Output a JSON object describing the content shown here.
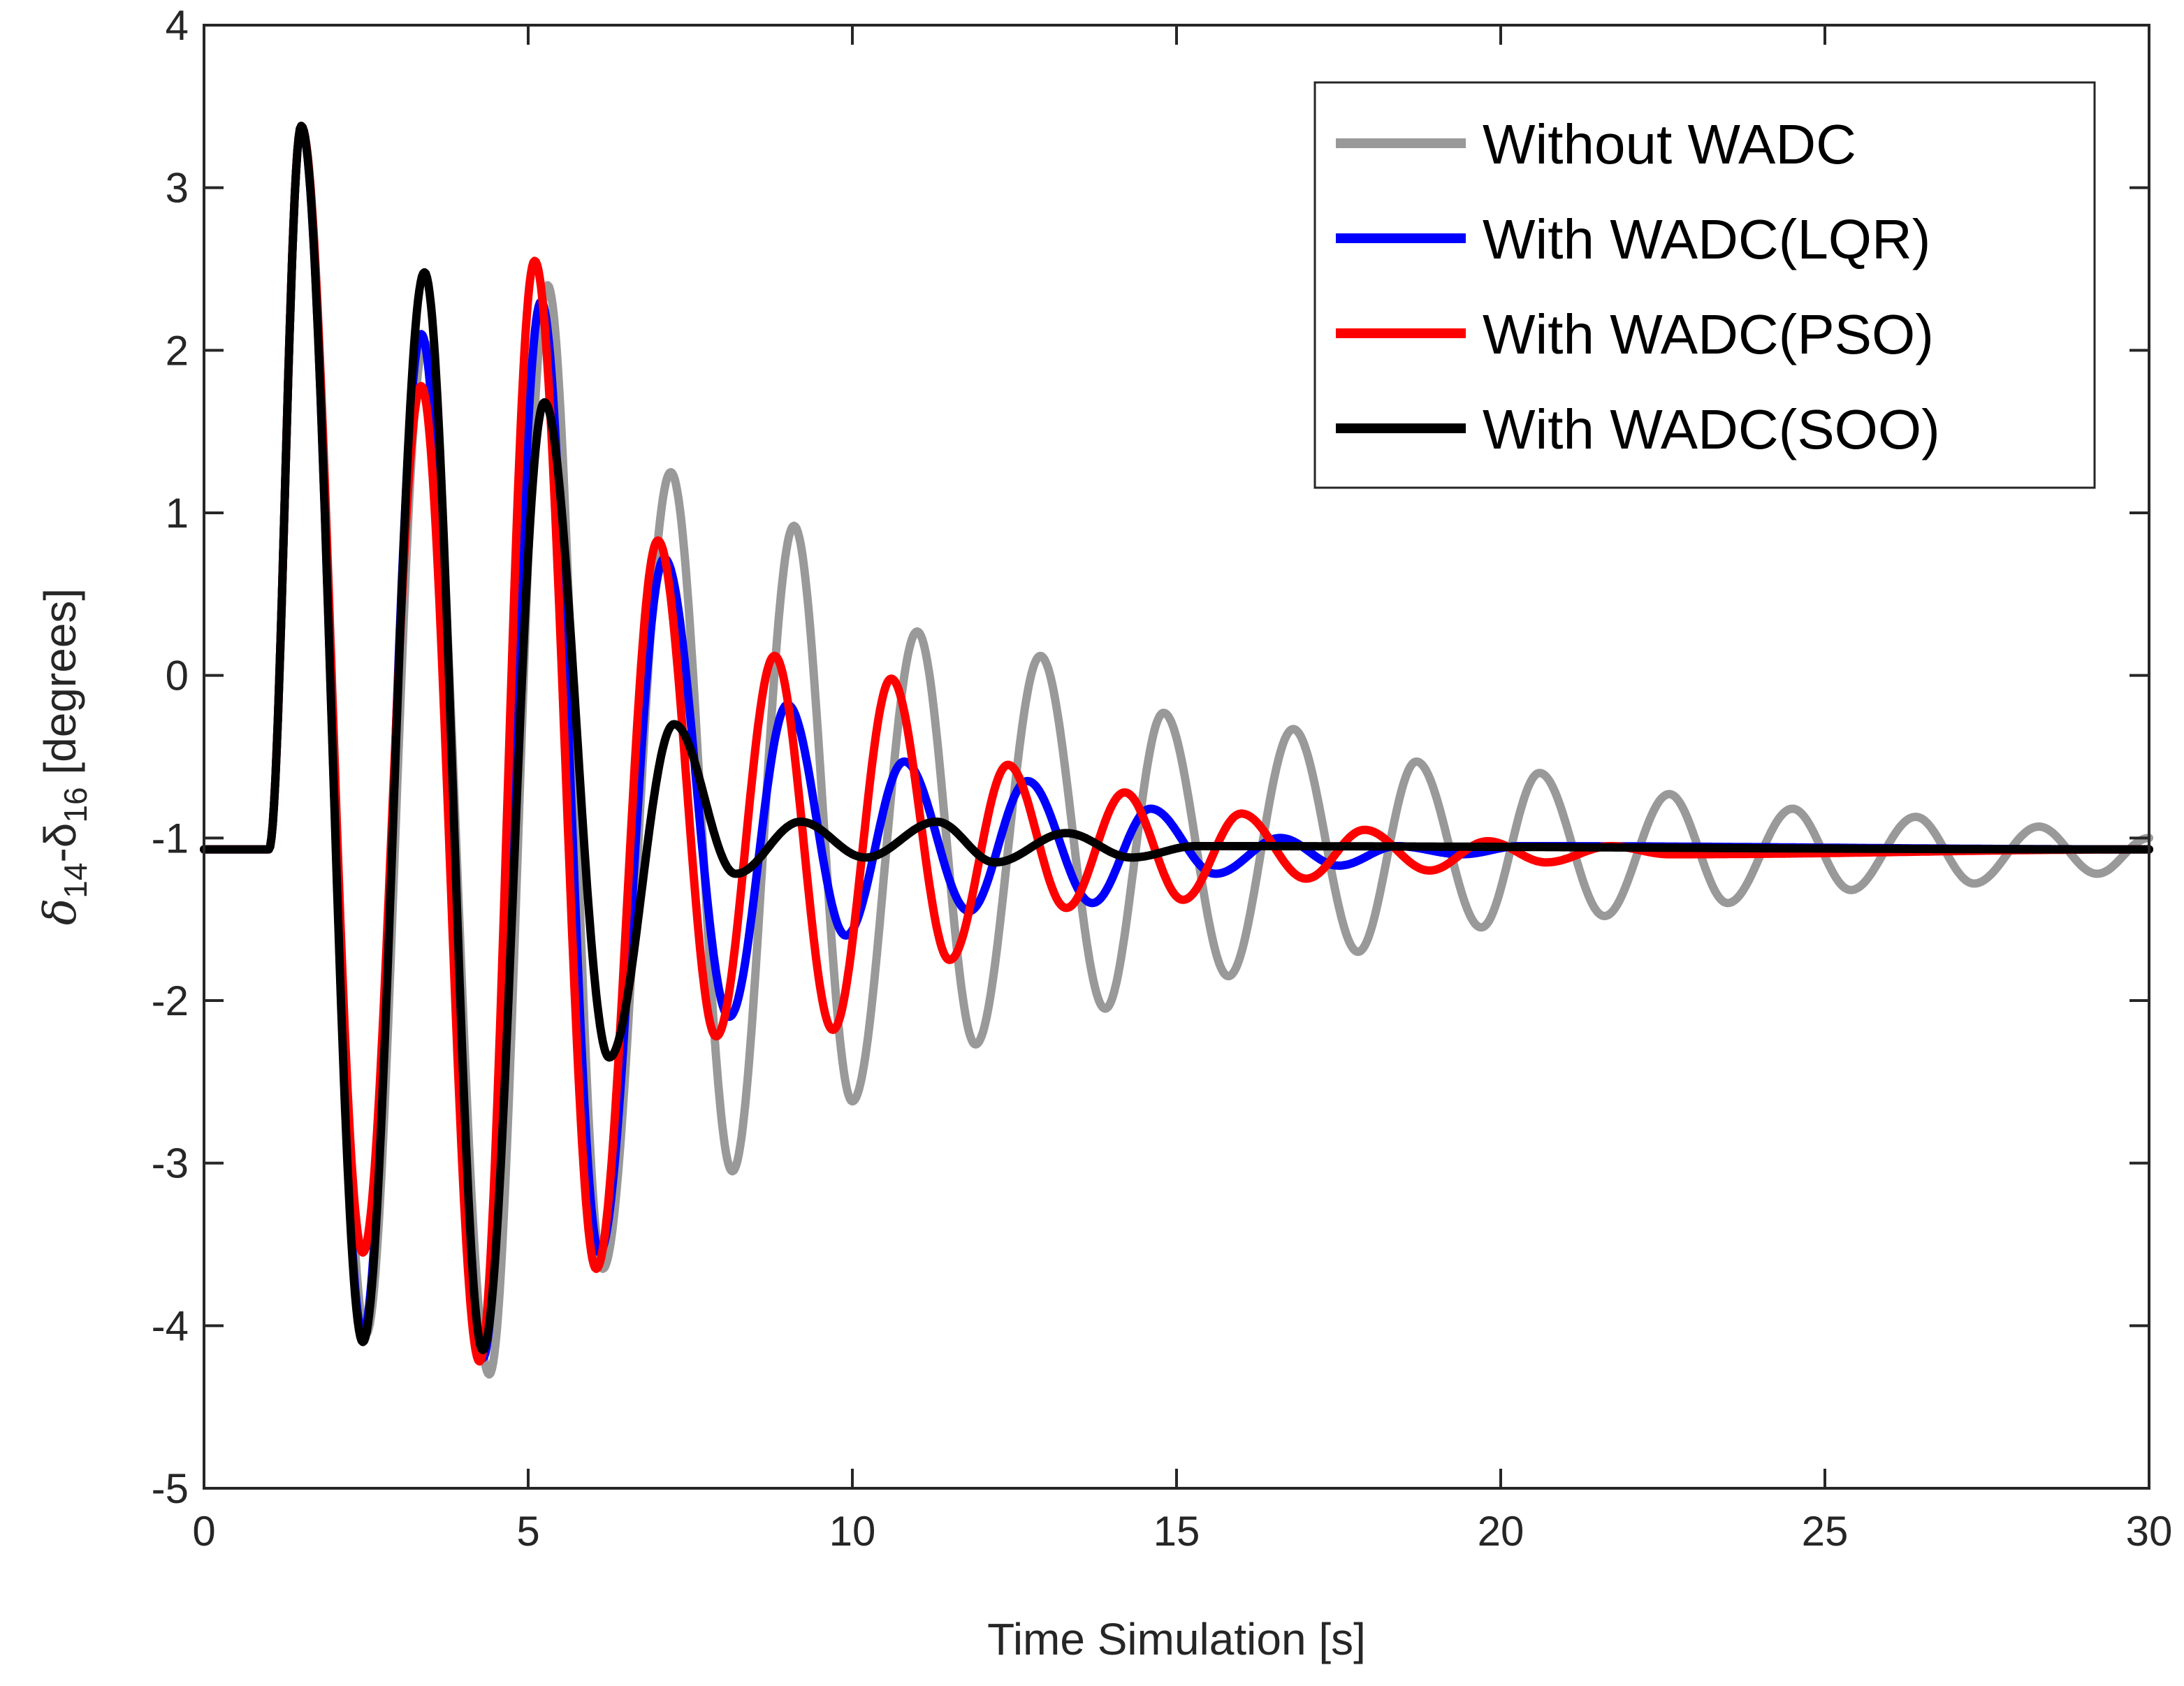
{
  "chart_data": {
    "type": "line",
    "title": "",
    "xlabel": "Time Simulation [s]",
    "ylabel": {
      "prefix": "δ",
      "sub1": "14",
      "mid": "-δ",
      "sub2": "16",
      "suffix": " [degrees]"
    },
    "xlim": [
      0,
      30
    ],
    "ylim": [
      -5,
      4
    ],
    "xticks": [
      0,
      5,
      10,
      15,
      20,
      25,
      30
    ],
    "yticks": [
      -5,
      -4,
      -3,
      -2,
      -1,
      0,
      1,
      2,
      3,
      4
    ],
    "xtick_labels": [
      "0",
      "5",
      "10",
      "15",
      "20",
      "25",
      "30"
    ],
    "ytick_labels": [
      "-5",
      "-4",
      "-3",
      "-2",
      "-1",
      "0",
      "1",
      "2",
      "3",
      "4"
    ],
    "grid": false,
    "legend_position": "top-right",
    "baseline": -1.07,
    "disturbance_start": 1.0,
    "series": [
      {
        "name": "Without WADC",
        "color": "#999999",
        "extrema": [
          [
            1.0,
            -1.07
          ],
          [
            1.5,
            3.38
          ],
          [
            2.5,
            -4.05
          ],
          [
            3.4,
            2.05
          ],
          [
            4.4,
            -4.3
          ],
          [
            5.3,
            2.4
          ],
          [
            6.15,
            -3.65
          ],
          [
            7.2,
            1.25
          ],
          [
            8.15,
            -3.05
          ],
          [
            9.1,
            0.92
          ],
          [
            10.0,
            -2.62
          ],
          [
            11.0,
            0.27
          ],
          [
            11.9,
            -2.27
          ],
          [
            12.9,
            0.12
          ],
          [
            13.9,
            -2.05
          ],
          [
            14.8,
            -0.23
          ],
          [
            15.8,
            -1.85
          ],
          [
            16.8,
            -0.33
          ],
          [
            17.8,
            -1.7
          ],
          [
            18.7,
            -0.53
          ],
          [
            19.7,
            -1.55
          ],
          [
            20.6,
            -0.6
          ],
          [
            21.6,
            -1.48
          ],
          [
            22.6,
            -0.73
          ],
          [
            23.5,
            -1.4
          ],
          [
            24.5,
            -0.82
          ],
          [
            25.4,
            -1.32
          ],
          [
            26.4,
            -0.87
          ],
          [
            27.3,
            -1.28
          ],
          [
            28.3,
            -0.93
          ],
          [
            29.2,
            -1.22
          ],
          [
            30.0,
            -1.0
          ]
        ]
      },
      {
        "name": "With WADC(LQR)",
        "color": "#0000ff",
        "extrema": [
          [
            1.0,
            -1.07
          ],
          [
            1.5,
            3.38
          ],
          [
            2.45,
            -4.05
          ],
          [
            3.35,
            2.1
          ],
          [
            4.3,
            -4.2
          ],
          [
            5.2,
            2.3
          ],
          [
            6.1,
            -3.55
          ],
          [
            7.1,
            0.72
          ],
          [
            8.1,
            -2.1
          ],
          [
            9.0,
            -0.18
          ],
          [
            9.9,
            -1.6
          ],
          [
            10.8,
            -0.53
          ],
          [
            11.8,
            -1.45
          ],
          [
            12.7,
            -0.65
          ],
          [
            13.7,
            -1.4
          ],
          [
            14.6,
            -0.82
          ],
          [
            15.6,
            -1.22
          ],
          [
            16.6,
            -1.0
          ],
          [
            17.5,
            -1.17
          ],
          [
            18.4,
            -1.05
          ],
          [
            19.4,
            -1.1
          ],
          [
            20.3,
            -1.05
          ],
          [
            30.0,
            -1.07
          ]
        ]
      },
      {
        "name": "With WADC(PSO)",
        "color": "#ff0000",
        "extrema": [
          [
            1.0,
            -1.07
          ],
          [
            1.5,
            3.38
          ],
          [
            2.45,
            -3.55
          ],
          [
            3.35,
            1.78
          ],
          [
            4.25,
            -4.22
          ],
          [
            5.1,
            2.55
          ],
          [
            6.05,
            -3.65
          ],
          [
            7.0,
            0.83
          ],
          [
            7.9,
            -2.22
          ],
          [
            8.8,
            0.12
          ],
          [
            9.7,
            -2.18
          ],
          [
            10.6,
            -0.02
          ],
          [
            11.5,
            -1.75
          ],
          [
            12.4,
            -0.55
          ],
          [
            13.3,
            -1.43
          ],
          [
            14.2,
            -0.72
          ],
          [
            15.1,
            -1.38
          ],
          [
            16.0,
            -0.85
          ],
          [
            17.0,
            -1.25
          ],
          [
            17.9,
            -0.95
          ],
          [
            18.9,
            -1.2
          ],
          [
            19.8,
            -1.02
          ],
          [
            20.7,
            -1.15
          ],
          [
            21.7,
            -1.05
          ],
          [
            22.6,
            -1.1
          ],
          [
            30.0,
            -1.07
          ]
        ]
      },
      {
        "name": "With WADC(SOO)",
        "color": "#000000",
        "extrema": [
          [
            1.0,
            -1.07
          ],
          [
            1.5,
            3.38
          ],
          [
            2.45,
            -4.1
          ],
          [
            3.4,
            2.48
          ],
          [
            4.3,
            -4.15
          ],
          [
            5.25,
            1.68
          ],
          [
            6.25,
            -2.35
          ],
          [
            7.25,
            -0.3
          ],
          [
            8.2,
            -1.22
          ],
          [
            9.2,
            -0.9
          ],
          [
            10.2,
            -1.12
          ],
          [
            11.3,
            -0.9
          ],
          [
            12.2,
            -1.15
          ],
          [
            13.3,
            -0.97
          ],
          [
            14.3,
            -1.12
          ],
          [
            15.3,
            -1.05
          ],
          [
            30.0,
            -1.07
          ]
        ]
      }
    ]
  }
}
